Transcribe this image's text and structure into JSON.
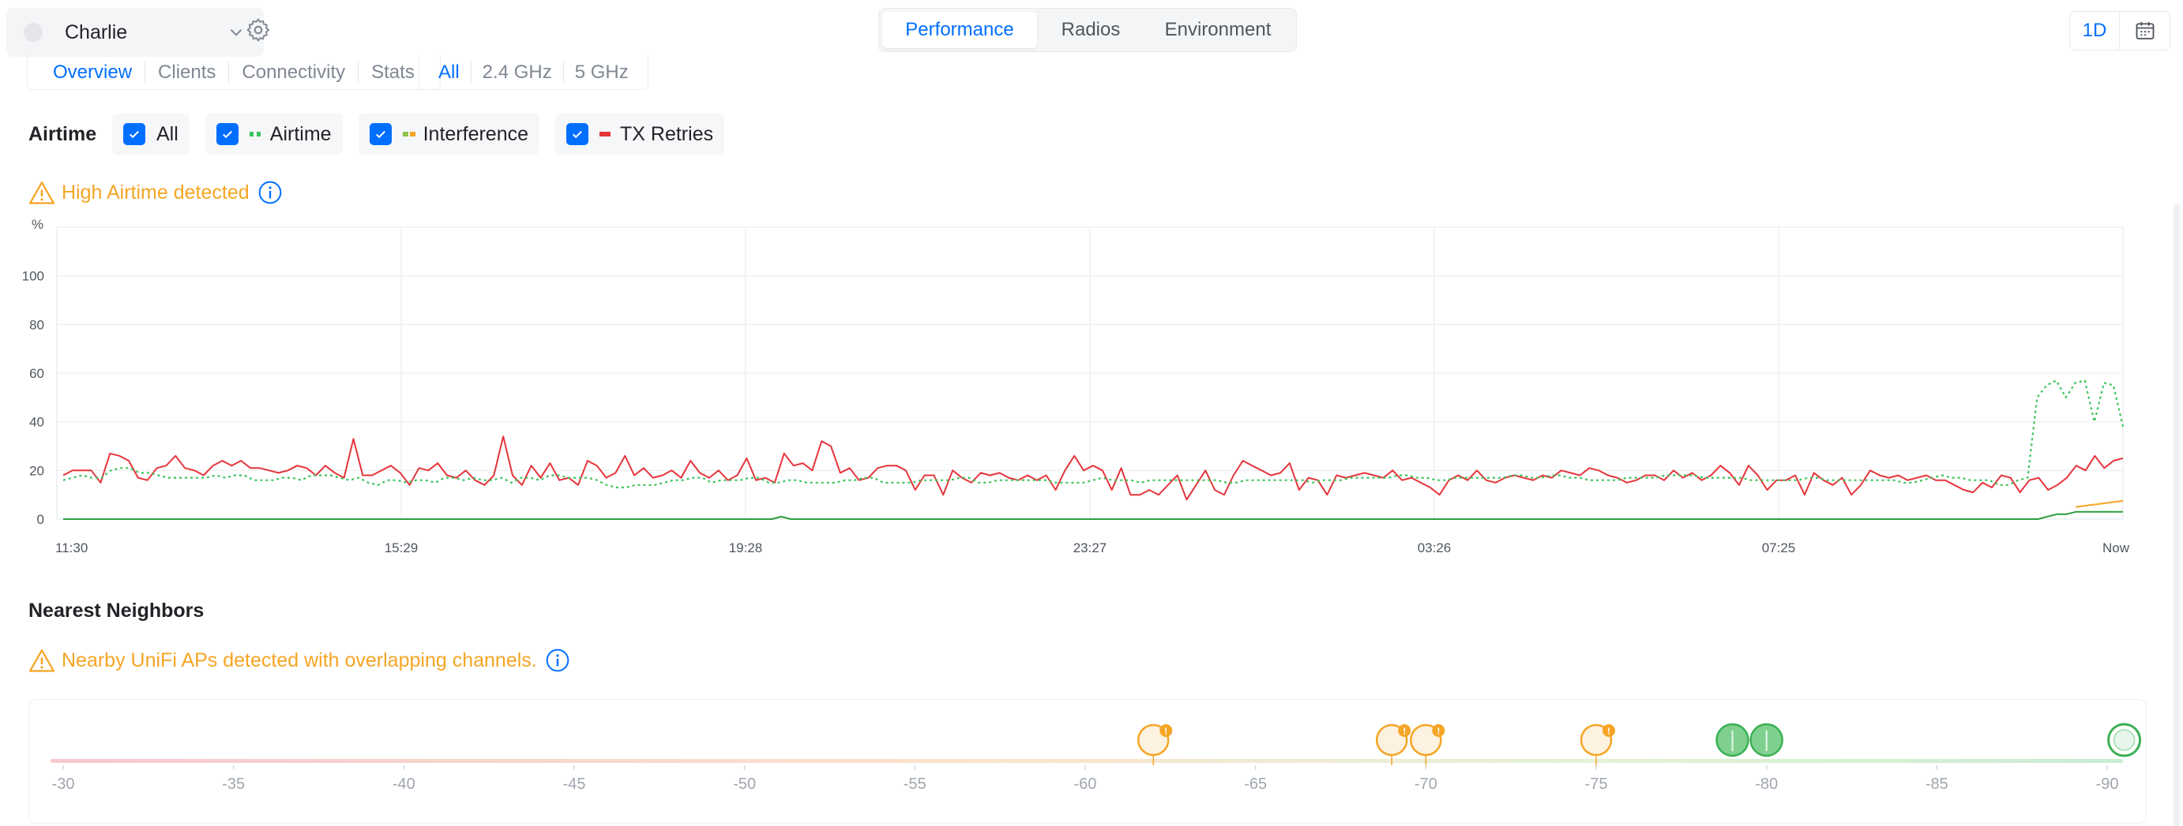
{
  "header": {
    "device_name": "Charlie",
    "main_tabs": [
      {
        "label": "Performance",
        "active": true
      },
      {
        "label": "Radios",
        "active": false
      },
      {
        "label": "Environment",
        "active": false
      }
    ],
    "range_label": "1D"
  },
  "subtabs": [
    {
      "label": "Overview",
      "active": true
    },
    {
      "label": "Clients",
      "active": false
    },
    {
      "label": "Connectivity",
      "active": false
    },
    {
      "label": "Stats",
      "active": false
    }
  ],
  "radio_filters": [
    {
      "label": "All",
      "active": true
    },
    {
      "label": "2.4 GHz",
      "active": false
    },
    {
      "label": "5 GHz",
      "active": false
    }
  ],
  "airtime": {
    "title": "Airtime",
    "filters": [
      {
        "label": "All",
        "checked": true,
        "legend": null
      },
      {
        "label": "Airtime",
        "checked": true,
        "legend": "#3cc35a"
      },
      {
        "label": "Interference",
        "checked": true,
        "legend": "#8bc34a"
      },
      {
        "label": "TX Retries",
        "checked": true,
        "legend": "#e5353b"
      }
    ],
    "warning": "High Airtime detected"
  },
  "chart_data": {
    "type": "line",
    "ylabel": "%",
    "ylim": [
      0,
      120
    ],
    "yticks": [
      "0",
      "20",
      "40",
      "60",
      "80",
      "100"
    ],
    "xticks": [
      "11:30",
      "15:29",
      "19:28",
      "23:27",
      "03:26",
      "07:25",
      "Now"
    ],
    "grid": true,
    "colors": {
      "airtime": "#3cc35a",
      "interference": "#2e9c3e",
      "tx_retries": "#e5353b",
      "orange": "#f5a524"
    },
    "series": [
      {
        "name": "TX Retries",
        "values": [
          18,
          20,
          20,
          20,
          15,
          27,
          26,
          24,
          17,
          16,
          21,
          22,
          26,
          21,
          20,
          18,
          22,
          24,
          22,
          24,
          21,
          21,
          20,
          19,
          20,
          22,
          21,
          18,
          22,
          19,
          17,
          33,
          18,
          18,
          20,
          22,
          19,
          14,
          21,
          20,
          23,
          18,
          17,
          20,
          16,
          14,
          18,
          34,
          18,
          14,
          22,
          17,
          23,
          16,
          17,
          14,
          24,
          22,
          17,
          19,
          26,
          18,
          21,
          17,
          18,
          20,
          17,
          24,
          19,
          17,
          20,
          16,
          18,
          25,
          16,
          17,
          15,
          27,
          22,
          23,
          20,
          32,
          30,
          19,
          21,
          16,
          17,
          21,
          22,
          22,
          20,
          12,
          18,
          18,
          10,
          20,
          17,
          15,
          19,
          18,
          19,
          17,
          16,
          18,
          16,
          18,
          12,
          20,
          26,
          20,
          22,
          20,
          12,
          21,
          10,
          10,
          12,
          10,
          14,
          18,
          8,
          14,
          20,
          12,
          10,
          18,
          24,
          22,
          20,
          18,
          19,
          23,
          12,
          17,
          16,
          10,
          18,
          17,
          18,
          19,
          18,
          17,
          20,
          16,
          17,
          15,
          13,
          10,
          16,
          18,
          16,
          20,
          16,
          15,
          17,
          18,
          17,
          16,
          18,
          17,
          20,
          19,
          18,
          21,
          20,
          18,
          17,
          15,
          16,
          18,
          18,
          16,
          20,
          17,
          19,
          16,
          18,
          22,
          19,
          14,
          22,
          18,
          12,
          16,
          16,
          18,
          10,
          19,
          16,
          14,
          17,
          10,
          14,
          20,
          18,
          17,
          18,
          16,
          17,
          18,
          16,
          16,
          14,
          12,
          11,
          15,
          13,
          18,
          17,
          11,
          16,
          17,
          12,
          14,
          17,
          22,
          20,
          26,
          21,
          24,
          25
        ]
      },
      {
        "name": "Airtime",
        "values": [
          16,
          17,
          18,
          17,
          17,
          20,
          21,
          21,
          19,
          19,
          18,
          17,
          17,
          17,
          17,
          17,
          18,
          17,
          18,
          18,
          16,
          16,
          16,
          17,
          17,
          16,
          18,
          18,
          18,
          17,
          16,
          17,
          15,
          14,
          16,
          16,
          15,
          16,
          16,
          15,
          17,
          17,
          16,
          17,
          16,
          16,
          17,
          15,
          17,
          17,
          16,
          18,
          18,
          17,
          17,
          17,
          16,
          14,
          13,
          13,
          14,
          14,
          14,
          15,
          16,
          16,
          17,
          17,
          15,
          16,
          16,
          16,
          17,
          17,
          15,
          15,
          16,
          16,
          15,
          15,
          15,
          15,
          16,
          16,
          17,
          17,
          15,
          15,
          15,
          15,
          16,
          16,
          16,
          16,
          17,
          17,
          15,
          15,
          16,
          16,
          16,
          16,
          16,
          16,
          15,
          15,
          15,
          15,
          16,
          17,
          16,
          16,
          16,
          15,
          16,
          16,
          16,
          16,
          16,
          16,
          16,
          16,
          15,
          15,
          16,
          16,
          16,
          16,
          16,
          16,
          16,
          15,
          16,
          16,
          16,
          17,
          17,
          17,
          17,
          17,
          18,
          18,
          17,
          17,
          16,
          16,
          17,
          17,
          17,
          17,
          17,
          17,
          18,
          18,
          17,
          17,
          18,
          18,
          17,
          17,
          16,
          16,
          16,
          16,
          17,
          17,
          17,
          17,
          18,
          18,
          18,
          18,
          17,
          17,
          17,
          17,
          17,
          16,
          16,
          16,
          16,
          16,
          16,
          17,
          17,
          16,
          16,
          16,
          16,
          16,
          16,
          16,
          16,
          15,
          15,
          16,
          17,
          18,
          17,
          17,
          16,
          16,
          16,
          14,
          14,
          16,
          17,
          50,
          55,
          57,
          50,
          56,
          57,
          40,
          56,
          55,
          38
        ]
      },
      {
        "name": "Interference",
        "values": [
          0,
          0,
          0,
          0,
          0,
          0,
          0,
          0,
          0,
          0,
          0,
          0,
          0,
          0,
          0,
          0,
          0,
          0,
          0,
          0,
          0,
          0,
          0,
          0,
          0,
          0,
          0,
          0,
          0,
          0,
          0,
          0,
          0,
          0,
          0,
          0,
          0,
          0,
          0,
          0,
          0,
          0,
          0,
          0,
          0,
          0,
          0,
          0,
          0,
          0,
          0,
          0,
          0,
          0,
          0,
          0,
          0,
          0,
          0,
          0,
          0,
          0,
          0,
          0,
          0,
          0,
          0,
          0,
          0,
          0,
          0,
          0,
          0,
          0,
          0,
          0,
          1,
          0,
          0,
          0,
          0,
          0,
          0,
          0,
          0,
          0,
          0,
          0,
          0,
          0,
          0,
          0,
          0,
          0,
          0,
          0,
          0,
          0,
          0,
          0,
          0,
          0,
          0,
          0,
          0,
          0,
          0,
          0,
          0,
          0,
          0,
          0,
          0,
          0,
          0,
          0,
          0,
          0,
          0,
          0,
          0,
          0,
          0,
          0,
          0,
          0,
          0,
          0,
          0,
          0,
          0,
          0,
          0,
          0,
          0,
          0,
          0,
          0,
          0,
          0,
          0,
          0,
          0,
          0,
          0,
          0,
          0,
          0,
          0,
          0,
          0,
          0,
          0,
          0,
          0,
          0,
          0,
          0,
          0,
          0,
          0,
          0,
          0,
          0,
          0,
          0,
          0,
          0,
          0,
          0,
          0,
          0,
          0,
          0,
          0,
          0,
          0,
          0,
          0,
          0,
          0,
          0,
          0,
          0,
          0,
          0,
          0,
          0,
          0,
          0,
          0,
          0,
          0,
          0,
          0,
          0,
          0,
          0,
          0,
          0,
          0,
          0,
          0,
          0,
          0,
          0,
          0,
          0,
          0,
          0,
          1,
          2,
          2,
          3,
          3,
          3,
          3,
          3,
          3
        ]
      }
    ]
  },
  "neighbors": {
    "title": "Nearest Neighbors",
    "warning": "Nearby UniFi APs detected with overlapping channels.",
    "scale_labels": [
      "-30",
      "-35",
      "-40",
      "-45",
      "-50",
      "-55",
      "-60",
      "-65",
      "-70",
      "-75",
      "-80",
      "-85",
      "-90"
    ],
    "scale_min": -30,
    "scale_max": -90,
    "markers": [
      {
        "value": -62,
        "status": "warning"
      },
      {
        "value": -69,
        "status": "warning"
      },
      {
        "value": -70,
        "status": "warning"
      },
      {
        "value": -75,
        "status": "warning"
      },
      {
        "value": -79,
        "status": "good"
      },
      {
        "value": -80,
        "status": "good"
      },
      {
        "value": -90.5,
        "status": "good-outline"
      }
    ]
  }
}
